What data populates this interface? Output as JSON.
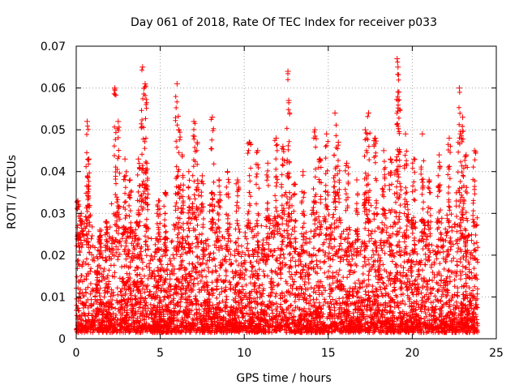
{
  "chart_data": {
    "type": "scatter",
    "title": "Day 061 of 2018, Rate Of TEC Index for receiver p033",
    "xlabel": "GPS time / hours",
    "ylabel": "ROTI / TECUs",
    "xlim": [
      0,
      25
    ],
    "ylim": [
      0,
      0.07
    ],
    "xticks": [
      0,
      5,
      10,
      15,
      20,
      25
    ],
    "xtick_labels": [
      "0",
      "5",
      "10",
      "15",
      "20",
      "25"
    ],
    "yticks": [
      0,
      0.01,
      0.02,
      0.03,
      0.04,
      0.05,
      0.06,
      0.07
    ],
    "ytick_labels": [
      "0",
      "0.01",
      "0.02",
      "0.03",
      "0.04",
      "0.05",
      "0.06",
      "0.07"
    ],
    "grid": true,
    "marker": "+",
    "series": [
      {
        "name": "ROTI",
        "color": "#ff0000",
        "x_range": [
          0.0,
          23.9
        ],
        "baseline_min": 0.002,
        "peaks": [
          {
            "x": 0.1,
            "y": 0.033
          },
          {
            "x": 0.3,
            "y": 0.03
          },
          {
            "x": 0.65,
            "y": 0.052
          },
          {
            "x": 0.75,
            "y": 0.043
          },
          {
            "x": 1.4,
            "y": 0.026
          },
          {
            "x": 1.8,
            "y": 0.028
          },
          {
            "x": 2.3,
            "y": 0.06
          },
          {
            "x": 2.5,
            "y": 0.052
          },
          {
            "x": 2.9,
            "y": 0.043
          },
          {
            "x": 3.2,
            "y": 0.038
          },
          {
            "x": 3.7,
            "y": 0.043
          },
          {
            "x": 3.95,
            "y": 0.065
          },
          {
            "x": 4.1,
            "y": 0.061
          },
          {
            "x": 4.2,
            "y": 0.042
          },
          {
            "x": 4.9,
            "y": 0.033
          },
          {
            "x": 5.3,
            "y": 0.035
          },
          {
            "x": 6.0,
            "y": 0.061
          },
          {
            "x": 6.1,
            "y": 0.05
          },
          {
            "x": 6.3,
            "y": 0.044
          },
          {
            "x": 6.7,
            "y": 0.04
          },
          {
            "x": 7.0,
            "y": 0.052
          },
          {
            "x": 7.2,
            "y": 0.047
          },
          {
            "x": 7.5,
            "y": 0.039
          },
          {
            "x": 8.1,
            "y": 0.053
          },
          {
            "x": 8.5,
            "y": 0.038
          },
          {
            "x": 9.0,
            "y": 0.04
          },
          {
            "x": 9.6,
            "y": 0.038
          },
          {
            "x": 10.3,
            "y": 0.047
          },
          {
            "x": 10.8,
            "y": 0.045
          },
          {
            "x": 11.4,
            "y": 0.042
          },
          {
            "x": 11.9,
            "y": 0.048
          },
          {
            "x": 12.3,
            "y": 0.046
          },
          {
            "x": 12.6,
            "y": 0.064
          },
          {
            "x": 12.65,
            "y": 0.057
          },
          {
            "x": 13.0,
            "y": 0.037
          },
          {
            "x": 13.5,
            "y": 0.04
          },
          {
            "x": 14.2,
            "y": 0.05
          },
          {
            "x": 14.5,
            "y": 0.043
          },
          {
            "x": 14.9,
            "y": 0.049
          },
          {
            "x": 15.4,
            "y": 0.054
          },
          {
            "x": 15.6,
            "y": 0.047
          },
          {
            "x": 16.1,
            "y": 0.042
          },
          {
            "x": 16.7,
            "y": 0.038
          },
          {
            "x": 17.2,
            "y": 0.05
          },
          {
            "x": 17.4,
            "y": 0.054
          },
          {
            "x": 17.8,
            "y": 0.048
          },
          {
            "x": 18.3,
            "y": 0.045
          },
          {
            "x": 18.7,
            "y": 0.043
          },
          {
            "x": 19.1,
            "y": 0.067
          },
          {
            "x": 19.15,
            "y": 0.065
          },
          {
            "x": 19.2,
            "y": 0.059
          },
          {
            "x": 19.6,
            "y": 0.049
          },
          {
            "x": 20.1,
            "y": 0.043
          },
          {
            "x": 20.6,
            "y": 0.049
          },
          {
            "x": 21.0,
            "y": 0.038
          },
          {
            "x": 21.6,
            "y": 0.044
          },
          {
            "x": 22.2,
            "y": 0.048
          },
          {
            "x": 22.8,
            "y": 0.06
          },
          {
            "x": 23.0,
            "y": 0.053
          },
          {
            "x": 23.2,
            "y": 0.044
          },
          {
            "x": 23.7,
            "y": 0.045
          }
        ]
      }
    ]
  }
}
